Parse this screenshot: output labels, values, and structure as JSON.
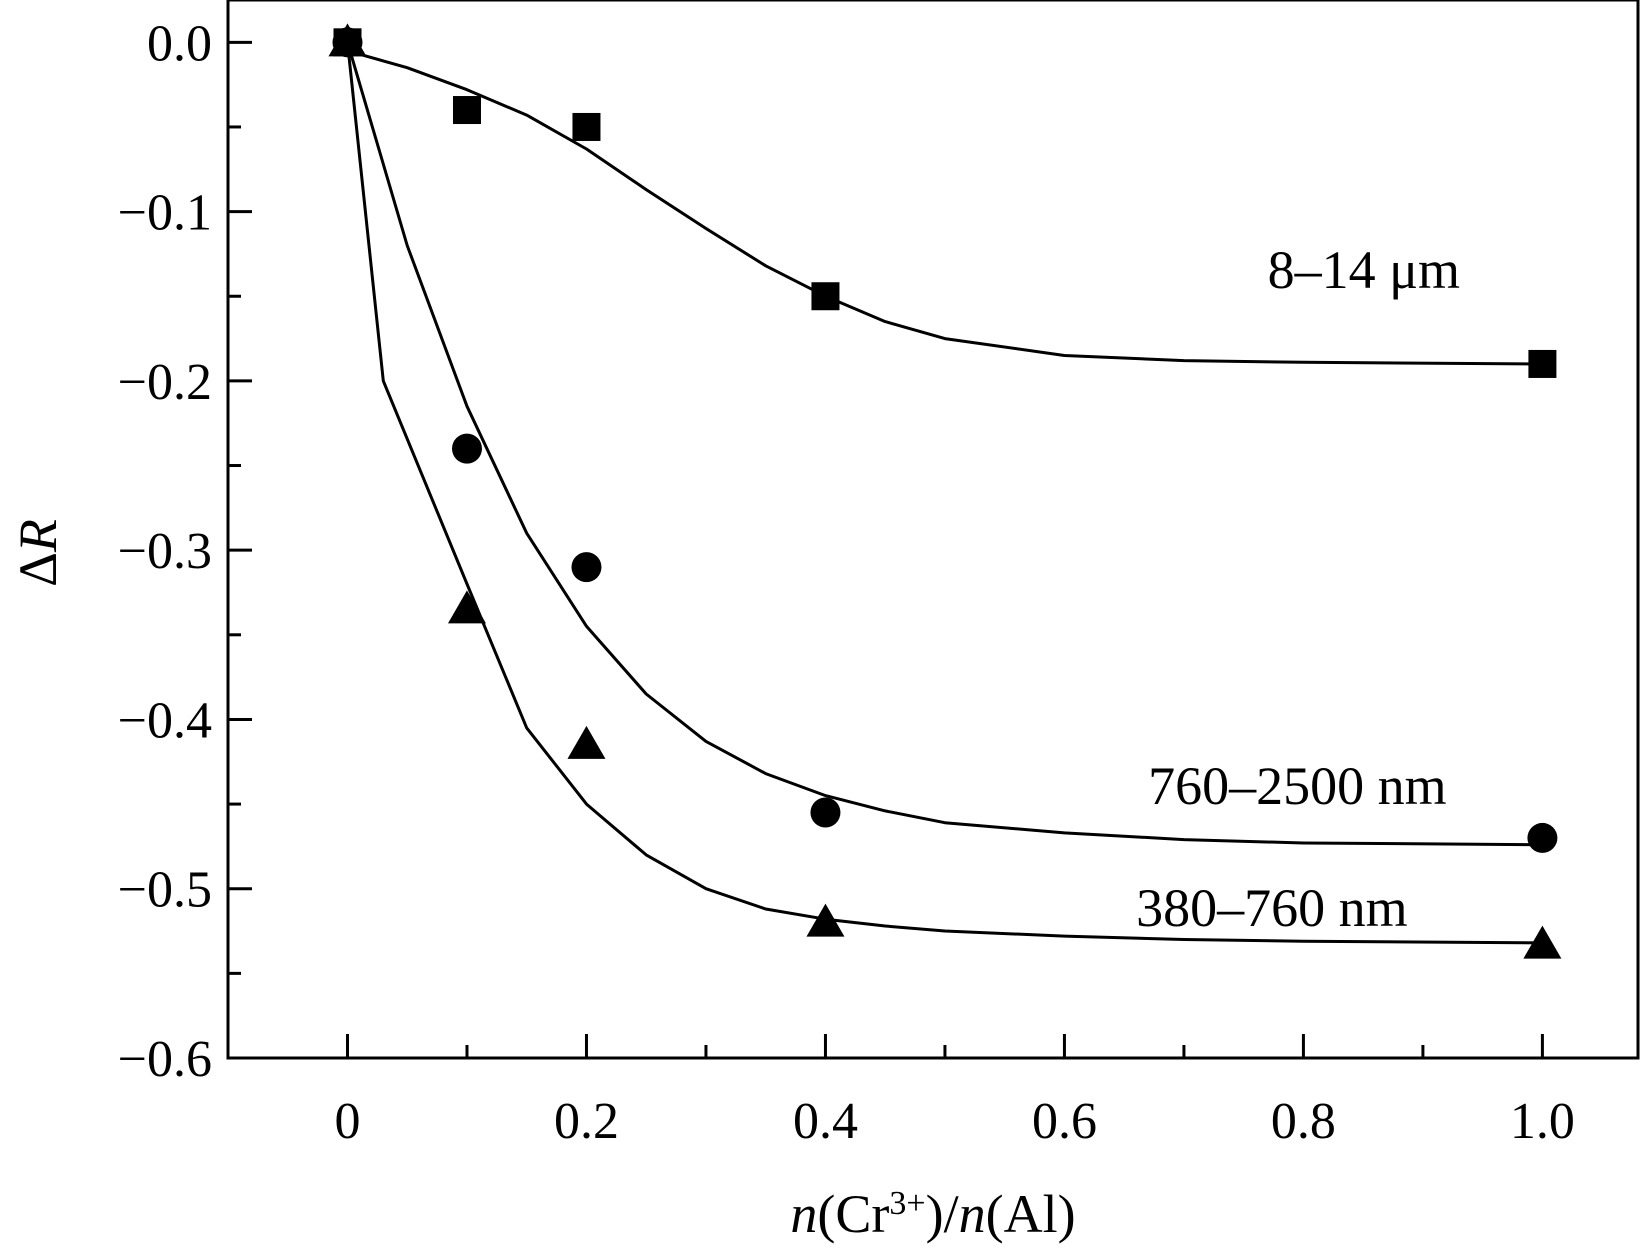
{
  "chart_data": {
    "type": "scatter",
    "xlabel": {
      "prefix": "n",
      "open": "(Cr",
      "sup": "3+",
      "mid": ")/",
      "prefix2": "n",
      "close": "(Al)"
    },
    "ylabel": {
      "delta": "Δ",
      "var": "R"
    },
    "xlim": [
      -0.1,
      1.08
    ],
    "ylim": [
      -0.6,
      0.025
    ],
    "xticks": [
      0,
      0.2,
      0.4,
      0.6,
      0.8,
      1.0
    ],
    "xtick_labels": [
      "0",
      "0.2",
      "0.4",
      "0.6",
      "0.8",
      "1.0"
    ],
    "yticks": [
      0.0,
      -0.1,
      -0.2,
      -0.3,
      -0.4,
      -0.5,
      -0.6
    ],
    "ytick_labels": [
      "0.0",
      "−0.1",
      "−0.2",
      "−0.3",
      "−0.4",
      "−0.5",
      "−0.6"
    ],
    "grid": false,
    "series": [
      {
        "name": "8–14 μm",
        "marker": "square",
        "x": [
          0,
          0.1,
          0.2,
          0.4,
          1.0
        ],
        "y": [
          0.0,
          -0.04,
          -0.05,
          -0.15,
          -0.19
        ],
        "curve": [
          [
            0,
            -0.005
          ],
          [
            0.05,
            -0.015
          ],
          [
            0.1,
            -0.028
          ],
          [
            0.15,
            -0.043
          ],
          [
            0.2,
            -0.063
          ],
          [
            0.25,
            -0.087
          ],
          [
            0.3,
            -0.11
          ],
          [
            0.35,
            -0.132
          ],
          [
            0.4,
            -0.15
          ],
          [
            0.45,
            -0.165
          ],
          [
            0.5,
            -0.175
          ],
          [
            0.6,
            -0.185
          ],
          [
            0.7,
            -0.188
          ],
          [
            0.8,
            -0.189
          ],
          [
            1.0,
            -0.19
          ]
        ],
        "label_at": [
          0.77,
          -0.145
        ]
      },
      {
        "name": "760–2500 nm",
        "marker": "circle",
        "x": [
          0,
          0.1,
          0.2,
          0.4,
          1.0
        ],
        "y": [
          0.0,
          -0.24,
          -0.31,
          -0.455,
          -0.47
        ],
        "curve": [
          [
            0,
            0.0
          ],
          [
            0.05,
            -0.12
          ],
          [
            0.1,
            -0.215
          ],
          [
            0.15,
            -0.29
          ],
          [
            0.2,
            -0.345
          ],
          [
            0.25,
            -0.385
          ],
          [
            0.3,
            -0.413
          ],
          [
            0.35,
            -0.432
          ],
          [
            0.4,
            -0.445
          ],
          [
            0.45,
            -0.454
          ],
          [
            0.5,
            -0.461
          ],
          [
            0.6,
            -0.467
          ],
          [
            0.7,
            -0.471
          ],
          [
            0.8,
            -0.473
          ],
          [
            1.0,
            -0.474
          ]
        ],
        "label_at": [
          0.67,
          -0.45
        ]
      },
      {
        "name": "380–760 nm",
        "marker": "triangle",
        "x": [
          0,
          0.1,
          0.2,
          0.4,
          1.0
        ],
        "y": [
          0.0,
          -0.335,
          -0.415,
          -0.52,
          -0.533
        ],
        "curve": [
          [
            0,
            0.0
          ],
          [
            0.03,
            -0.2
          ],
          [
            0.1,
            -0.32
          ],
          [
            0.15,
            -0.405
          ],
          [
            0.2,
            -0.45
          ],
          [
            0.25,
            -0.48
          ],
          [
            0.3,
            -0.5
          ],
          [
            0.35,
            -0.512
          ],
          [
            0.4,
            -0.518
          ],
          [
            0.45,
            -0.522
          ],
          [
            0.5,
            -0.525
          ],
          [
            0.6,
            -0.528
          ],
          [
            0.7,
            -0.53
          ],
          [
            0.8,
            -0.531
          ],
          [
            1.0,
            -0.532
          ]
        ],
        "label_at": [
          0.66,
          -0.522
        ]
      }
    ]
  }
}
